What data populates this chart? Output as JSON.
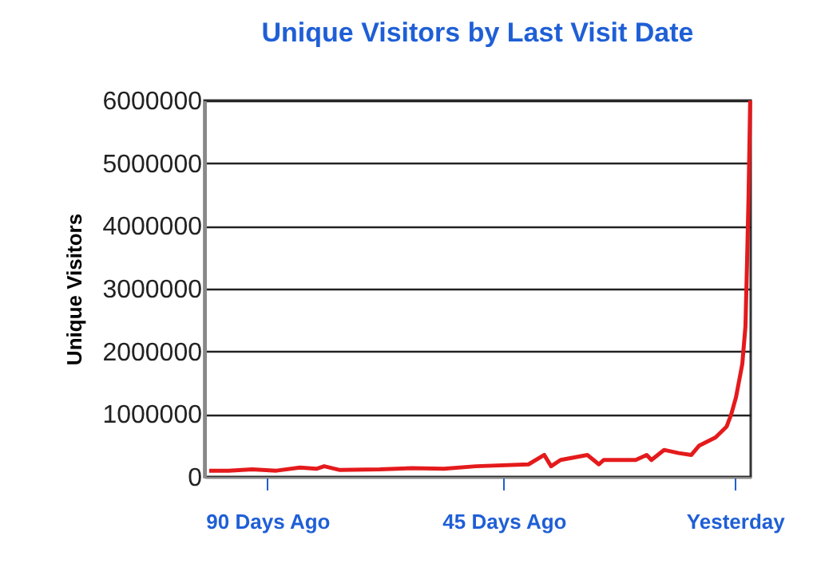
{
  "chart_data": {
    "type": "line",
    "title": "Unique Visitors by Last Visit Date",
    "ylabel": "Unique Visitors",
    "x": [
      -101.1,
      -97.4,
      -92.9,
      -88.3,
      -83.8,
      -80.7,
      -79.2,
      -76.2,
      -68.6,
      -62.5,
      -56.4,
      -50.3,
      -40.3,
      -37.3,
      -36,
      -34.2,
      -29.1,
      -26.9,
      -26,
      -19.9,
      -17.8,
      -16.9,
      -14.5,
      -11.7,
      -9.3,
      -7.8,
      -4.7,
      -2.6,
      -1.7,
      -0.8,
      0.4,
      1,
      1.3,
      1.6,
      1.9
    ],
    "series": [
      {
        "color": "#e41a1c",
        "values": [
          100000,
          100000,
          120000,
          100000,
          150000,
          130000,
          170000,
          110000,
          120000,
          140000,
          130000,
          170000,
          200000,
          350000,
          170000,
          270000,
          350000,
          200000,
          270000,
          270000,
          350000,
          270000,
          430000,
          380000,
          350000,
          500000,
          630000,
          800000,
          1000000,
          1270000,
          1800000,
          2400000,
          3400000,
          4500000,
          6000000
        ]
      }
    ],
    "xlim": [
      -102,
      2
    ],
    "xticks": [
      {
        "value": -90,
        "label": "90 Days Ago"
      },
      {
        "value": -45,
        "label": "45 Days Ago"
      },
      {
        "value": -1,
        "label": "Yesterday"
      }
    ],
    "ylim": [
      0,
      6000000
    ],
    "yticks": [
      0,
      1000000,
      2000000,
      3000000,
      4000000,
      5000000,
      6000000
    ],
    "grid": "y",
    "legend": false,
    "marker": "none",
    "line_style": "solid"
  }
}
